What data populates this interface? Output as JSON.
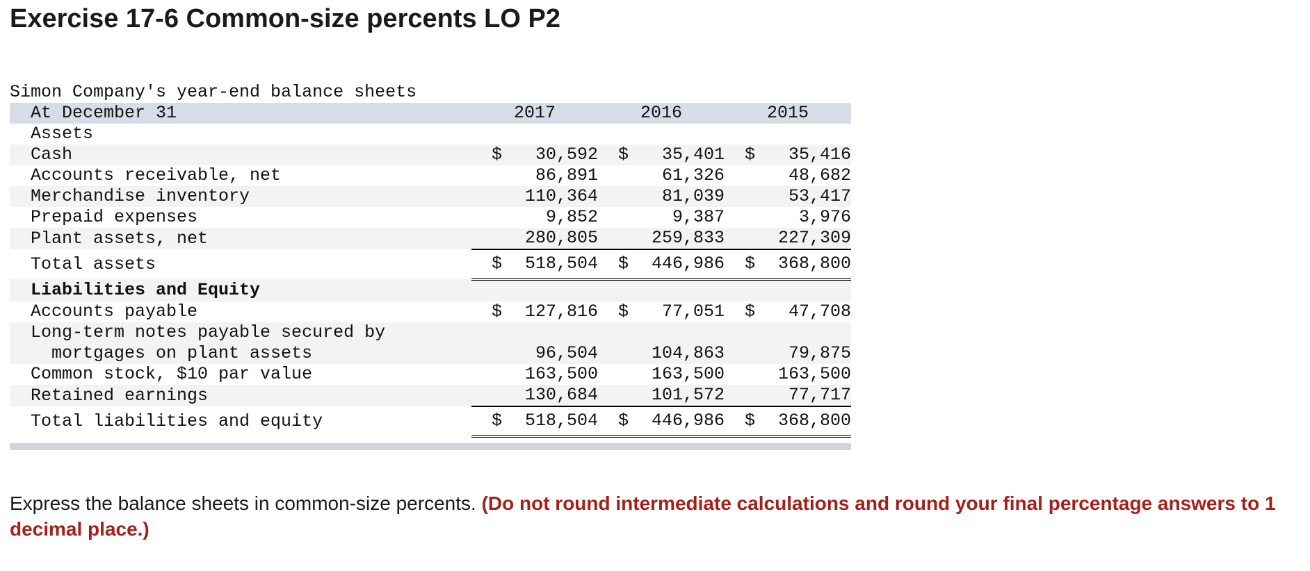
{
  "title": "Exercise 17-6 Common-size percents LO P2",
  "sheet": {
    "caption": "Simon Company's year-end balance sheets",
    "header_label": "At December 31",
    "years": [
      "2017",
      "2016",
      "2015"
    ],
    "currency": "$",
    "assets_heading": "Assets",
    "rows": {
      "cash": {
        "label": "Cash",
        "values": [
          "30,592",
          "35,401",
          "35,416"
        ]
      },
      "receivables": {
        "label": "Accounts receivable, net",
        "values": [
          "86,891",
          "61,326",
          "48,682"
        ]
      },
      "inventory": {
        "label": "Merchandise inventory",
        "values": [
          "110,364",
          "81,039",
          "53,417"
        ]
      },
      "prepaid": {
        "label": "Prepaid expenses",
        "values": [
          "9,852",
          "9,387",
          "3,976"
        ]
      },
      "plant": {
        "label": "Plant assets, net",
        "values": [
          "280,805",
          "259,833",
          "227,309"
        ]
      },
      "total_assets": {
        "label": "Total assets",
        "values": [
          "518,504",
          "446,986",
          "368,800"
        ]
      },
      "payable": {
        "label": "Accounts payable",
        "values": [
          "127,816",
          "77,051",
          "47,708"
        ]
      },
      "notes": {
        "label_line1": "Long-term notes payable secured by",
        "label_line2": "mortgages on plant assets",
        "values": [
          "96,504",
          "104,863",
          "79,875"
        ]
      },
      "common_stock": {
        "label": "Common stock, $10 par value",
        "values": [
          "163,500",
          "163,500",
          "163,500"
        ]
      },
      "retained": {
        "label": "Retained earnings",
        "values": [
          "130,684",
          "101,572",
          "77,717"
        ]
      },
      "total_le": {
        "label": "Total liabilities and equity",
        "values": [
          "518,504",
          "446,986",
          "368,800"
        ]
      }
    },
    "liabilities_heading": "Liabilities and Equity"
  },
  "instruction": {
    "text": "Express the balance sheets in common-size percents. ",
    "note": "(Do not round intermediate calculations and round your final percentage answers to 1 decimal place.)"
  }
}
